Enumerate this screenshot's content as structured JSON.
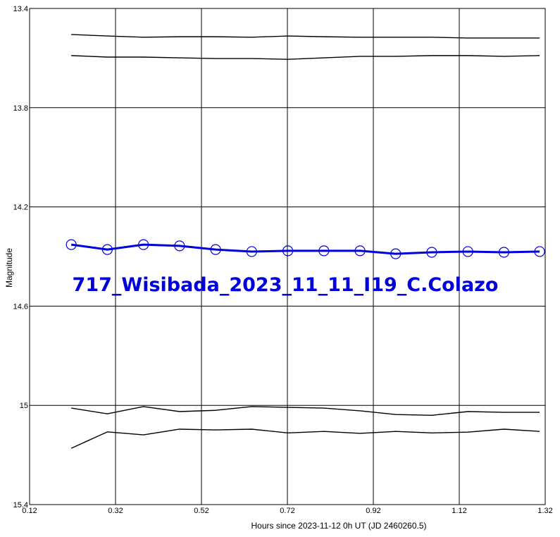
{
  "chart_data": {
    "type": "line",
    "annotation": "717_Wisibada_2023_11_11_I19_C.Colazo",
    "xlabel": "Hours since 2023-11-12 0h UT (JD 2460260.5)",
    "ylabel": "Magnitude",
    "xlim": [
      0.12,
      1.32
    ],
    "xticks": [
      0.12,
      0.32,
      0.52,
      0.72,
      0.92,
      1.12,
      1.32
    ],
    "ylim": [
      13.4,
      15.4
    ],
    "yticks": [
      13.4,
      13.8,
      14.2,
      14.6,
      15,
      15.4
    ],
    "invert_y": true,
    "grid": true,
    "x": [
      0.217,
      0.301,
      0.385,
      0.469,
      0.553,
      0.637,
      0.721,
      0.805,
      0.889,
      0.972,
      1.056,
      1.14,
      1.224,
      1.307
    ],
    "series": [
      {
        "color": "#000000",
        "markers": false,
        "width": 1.4,
        "values": [
          13.505,
          13.511,
          13.516,
          13.514,
          13.514,
          13.516,
          13.511,
          13.514,
          13.516,
          13.516,
          13.516,
          13.519,
          13.519,
          13.519
        ]
      },
      {
        "color": "#000000",
        "markers": false,
        "width": 1.4,
        "values": [
          13.59,
          13.596,
          13.596,
          13.599,
          13.602,
          13.602,
          13.605,
          13.599,
          13.593,
          13.593,
          13.59,
          13.59,
          13.593,
          13.59
        ]
      },
      {
        "color": "#0000dd",
        "markers": true,
        "width": 3,
        "values": [
          14.352,
          14.372,
          14.352,
          14.357,
          14.372,
          14.38,
          14.377,
          14.377,
          14.377,
          14.389,
          14.383,
          14.38,
          14.383,
          14.38
        ]
      },
      {
        "color": "#000000",
        "markers": false,
        "width": 1.4,
        "values": [
          15.011,
          15.034,
          15.005,
          15.025,
          15.02,
          15.005,
          15.008,
          15.011,
          15.022,
          15.037,
          15.04,
          15.025,
          15.028,
          15.028
        ]
      },
      {
        "color": "#000000",
        "markers": false,
        "width": 1.4,
        "values": [
          15.173,
          15.107,
          15.119,
          15.096,
          15.099,
          15.096,
          15.111,
          15.105,
          15.113,
          15.105,
          15.111,
          15.108,
          15.096,
          15.105
        ]
      }
    ]
  }
}
